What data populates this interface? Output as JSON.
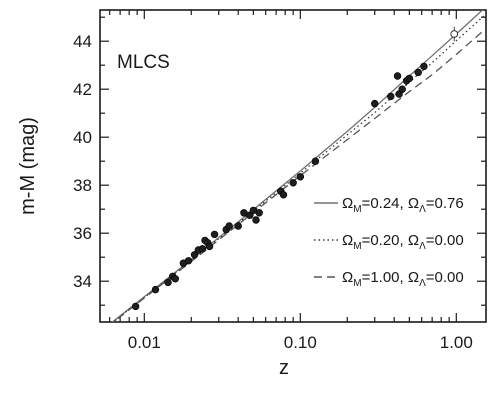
{
  "chart_data": {
    "type": "scatter",
    "panel_label": "MLCS",
    "xlabel": "z",
    "ylabel": "m-M (mag)",
    "x_scale": "log",
    "xlim": [
      0.0052,
      1.55
    ],
    "ylim": [
      32.3,
      45.3
    ],
    "x_ticks": [
      {
        "value": 0.01,
        "label": "0.01"
      },
      {
        "value": 0.1,
        "label": "0.10"
      },
      {
        "value": 1.0,
        "label": "1.00"
      }
    ],
    "y_ticks": [
      {
        "value": 34,
        "label": "34"
      },
      {
        "value": 36,
        "label": "36"
      },
      {
        "value": 38,
        "label": "38"
      },
      {
        "value": 40,
        "label": "40"
      },
      {
        "value": 42,
        "label": "42"
      },
      {
        "value": 44,
        "label": "44"
      }
    ],
    "grid": false,
    "legend_position": "lower-right",
    "points": [
      {
        "z": 0.0088,
        "mu": 32.95,
        "err": 0.15
      },
      {
        "z": 0.0118,
        "mu": 33.65,
        "err": 0.15
      },
      {
        "z": 0.0142,
        "mu": 33.95,
        "err": 0.12
      },
      {
        "z": 0.0152,
        "mu": 34.2,
        "err": 0.15
      },
      {
        "z": 0.0158,
        "mu": 34.1,
        "err": 0.12
      },
      {
        "z": 0.0178,
        "mu": 34.75,
        "err": 0.12
      },
      {
        "z": 0.0192,
        "mu": 34.85,
        "err": 0.12
      },
      {
        "z": 0.021,
        "mu": 35.1,
        "err": 0.12
      },
      {
        "z": 0.0222,
        "mu": 35.3,
        "err": 0.12
      },
      {
        "z": 0.0236,
        "mu": 35.35,
        "err": 0.15
      },
      {
        "z": 0.0245,
        "mu": 35.7,
        "err": 0.12
      },
      {
        "z": 0.0255,
        "mu": 35.6,
        "err": 0.12
      },
      {
        "z": 0.0262,
        "mu": 35.45,
        "err": 0.12
      },
      {
        "z": 0.0282,
        "mu": 35.95,
        "err": 0.12
      },
      {
        "z": 0.0335,
        "mu": 36.15,
        "err": 0.15
      },
      {
        "z": 0.035,
        "mu": 36.3,
        "err": 0.12
      },
      {
        "z": 0.04,
        "mu": 36.3,
        "err": 0.12
      },
      {
        "z": 0.0435,
        "mu": 36.85,
        "err": 0.12
      },
      {
        "z": 0.0475,
        "mu": 36.75,
        "err": 0.12
      },
      {
        "z": 0.05,
        "mu": 36.95,
        "err": 0.12
      },
      {
        "z": 0.052,
        "mu": 36.55,
        "err": 0.12
      },
      {
        "z": 0.0545,
        "mu": 36.85,
        "err": 0.15
      },
      {
        "z": 0.075,
        "mu": 37.75,
        "err": 0.12
      },
      {
        "z": 0.078,
        "mu": 37.6,
        "err": 0.12
      },
      {
        "z": 0.09,
        "mu": 38.1,
        "err": 0.12
      },
      {
        "z": 0.1,
        "mu": 38.35,
        "err": 0.12
      },
      {
        "z": 0.125,
        "mu": 39.0,
        "err": 0.12
      },
      {
        "z": 0.3,
        "mu": 41.4,
        "err": 0.15
      },
      {
        "z": 0.38,
        "mu": 41.7,
        "err": 0.15
      },
      {
        "z": 0.42,
        "mu": 42.55,
        "err": 0.15
      },
      {
        "z": 0.43,
        "mu": 41.8,
        "err": 0.15
      },
      {
        "z": 0.45,
        "mu": 42.0,
        "err": 0.15
      },
      {
        "z": 0.48,
        "mu": 42.35,
        "err": 0.2
      },
      {
        "z": 0.5,
        "mu": 42.45,
        "err": 0.15
      },
      {
        "z": 0.57,
        "mu": 42.7,
        "err": 0.15
      },
      {
        "z": 0.62,
        "mu": 42.95,
        "err": 0.15
      }
    ],
    "open_points": [
      {
        "z": 0.97,
        "mu": 44.3,
        "err": 0.3
      }
    ],
    "series": [
      {
        "name": "ΩM=0.24, ΩΛ=0.76",
        "om_label": "Ω",
        "om_sub": "M",
        "om_val": "=0.24, ",
        "ol_label": "Ω",
        "ol_sub": "Λ",
        "ol_val": "=0.76",
        "style": "solid",
        "color": "#707070",
        "x": [
          0.005,
          0.01,
          0.02,
          0.05,
          0.1,
          0.2,
          0.3,
          0.5,
          0.7,
          1.0,
          1.5
        ],
        "y": [
          31.8,
          33.35,
          34.9,
          36.98,
          38.59,
          40.24,
          41.24,
          42.55,
          43.39,
          44.3,
          45.35
        ]
      },
      {
        "name": "ΩM=0.20, ΩΛ=0.00",
        "om_label": "Ω",
        "om_sub": "M",
        "om_val": "=0.20, ",
        "ol_label": "Ω",
        "ol_sub": "Λ",
        "ol_val": "=0.00",
        "style": "dotted",
        "color": "#3a3a3a",
        "x": [
          0.005,
          0.01,
          0.02,
          0.05,
          0.1,
          0.2,
          0.3,
          0.5,
          0.7,
          1.0,
          1.5
        ],
        "y": [
          31.78,
          33.32,
          34.86,
          36.92,
          38.5,
          40.1,
          41.02,
          42.3,
          43.1,
          44.02,
          45.05
        ]
      },
      {
        "name": "ΩM=1.00, ΩΛ=0.00",
        "om_label": "Ω",
        "om_sub": "M",
        "om_val": "=1.00, ",
        "ol_label": "Ω",
        "ol_sub": "Λ",
        "ol_val": "=0.00",
        "style": "dashed",
        "color": "#555555",
        "x": [
          0.005,
          0.01,
          0.02,
          0.05,
          0.1,
          0.2,
          0.3,
          0.5,
          0.7,
          1.0,
          1.5
        ],
        "y": [
          31.77,
          33.3,
          34.82,
          36.86,
          38.4,
          39.9,
          40.78,
          41.9,
          42.6,
          43.45,
          44.45
        ]
      }
    ]
  }
}
